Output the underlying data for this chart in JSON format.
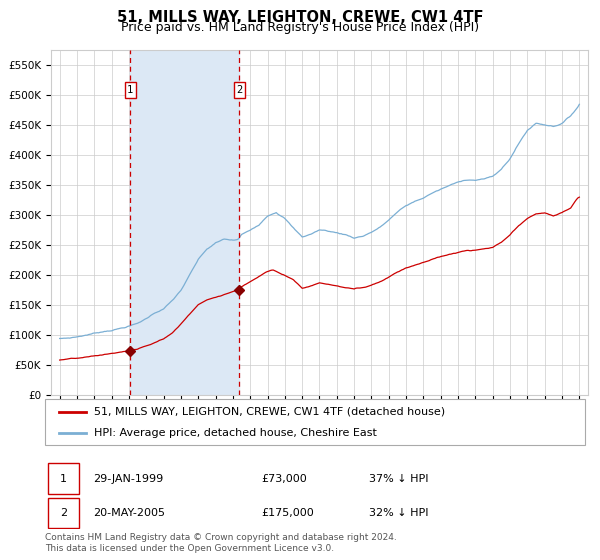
{
  "title": "51, MILLS WAY, LEIGHTON, CREWE, CW1 4TF",
  "subtitle": "Price paid vs. HM Land Registry's House Price Index (HPI)",
  "ylim": [
    0,
    575000
  ],
  "yticks": [
    0,
    50000,
    100000,
    150000,
    200000,
    250000,
    300000,
    350000,
    400000,
    450000,
    500000,
    550000
  ],
  "ytick_labels": [
    "£0",
    "£50K",
    "£100K",
    "£150K",
    "£200K",
    "£250K",
    "£300K",
    "£350K",
    "£400K",
    "£450K",
    "£500K",
    "£550K"
  ],
  "grid_color": "#cccccc",
  "hpi_color": "#7bafd4",
  "sale_color": "#cc0000",
  "vline_color": "#cc0000",
  "shade_color": "#dce8f5",
  "marker_color": "#880000",
  "sale1_year": 1999.08,
  "sale1_price": 73000,
  "sale2_year": 2005.38,
  "sale2_price": 175000,
  "legend_line1": "51, MILLS WAY, LEIGHTON, CREWE, CW1 4TF (detached house)",
  "legend_line2": "HPI: Average price, detached house, Cheshire East",
  "table_row1_date": "29-JAN-1999",
  "table_row1_price": "£73,000",
  "table_row1_hpi": "37% ↓ HPI",
  "table_row2_date": "20-MAY-2005",
  "table_row2_price": "£175,000",
  "table_row2_hpi": "32% ↓ HPI",
  "footer": "Contains HM Land Registry data © Crown copyright and database right 2024.\nThis data is licensed under the Open Government Licence v3.0.",
  "title_fontsize": 10.5,
  "subtitle_fontsize": 9,
  "tick_fontsize": 7.5,
  "legend_fontsize": 8,
  "table_fontsize": 8,
  "footer_fontsize": 6.5
}
